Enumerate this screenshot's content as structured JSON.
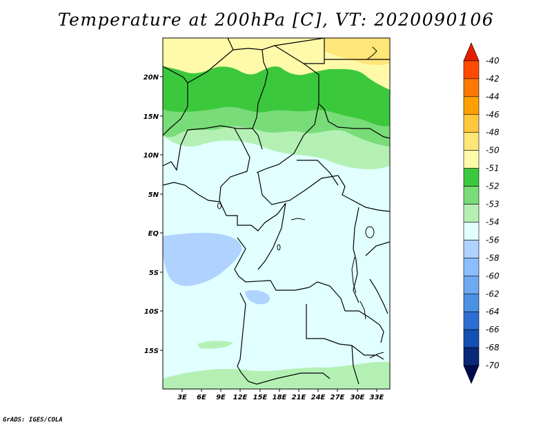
{
  "title": "Temperature at 200hPa [C], VT: 2020090106",
  "credit": "GrADS: IGES/COLA",
  "map": {
    "lat_labels": [
      "20N",
      "15N",
      "10N",
      "5N",
      "EQ",
      "5S",
      "10S",
      "15S"
    ],
    "lon_labels": [
      "3E",
      "6E",
      "9E",
      "12E",
      "15E",
      "18E",
      "21E",
      "24E",
      "27E",
      "30E",
      "33E"
    ]
  },
  "legend": {
    "labels": [
      "-40",
      "-42",
      "-44",
      "-46",
      "-48",
      "-50",
      "-51",
      "-52",
      "-53",
      "-54",
      "-56",
      "-58",
      "-60",
      "-62",
      "-64",
      "-66",
      "-68",
      "-70"
    ],
    "colors": [
      "#e61e00",
      "#ff4b00",
      "#ff7800",
      "#ffa000",
      "#ffc83c",
      "#ffe678",
      "#fffaaa",
      "#3cc83c",
      "#78dc78",
      "#b4f0b4",
      "#e1ffff",
      "#afd2ff",
      "#8cbeff",
      "#6eaaf0",
      "#4b91e6",
      "#2d6ed2",
      "#1450b4",
      "#0a2878",
      "#000a50"
    ]
  }
}
